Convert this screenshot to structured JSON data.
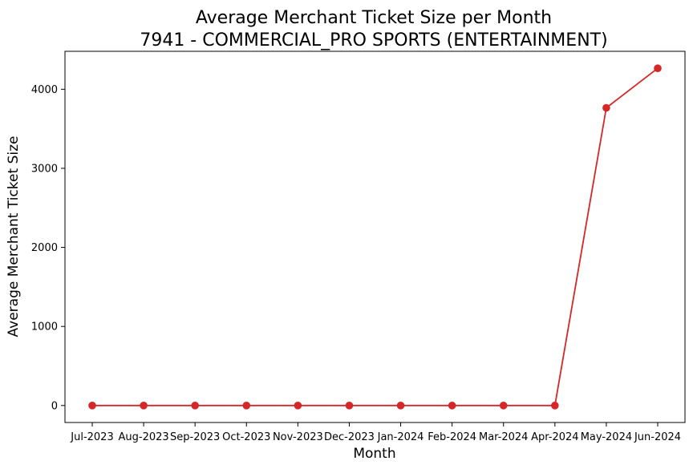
{
  "chart_data": {
    "type": "line",
    "title_line1": "Average Merchant Ticket Size per Month",
    "title_line2": "7941 - COMMERCIAL_PRO SPORTS (ENTERTAINMENT)",
    "xlabel": "Month",
    "ylabel": "Average Merchant Ticket Size",
    "categories": [
      "Jul-2023",
      "Aug-2023",
      "Sep-2023",
      "Oct-2023",
      "Nov-2023",
      "Dec-2023",
      "Jan-2024",
      "Feb-2024",
      "Mar-2024",
      "Apr-2024",
      "May-2024",
      "Jun-2024"
    ],
    "series": [
      {
        "name": "Average Merchant Ticket Size",
        "color": "#d62728",
        "values": [
          0,
          0,
          0,
          0,
          0,
          0,
          0,
          0,
          0,
          0,
          3765,
          4265
        ]
      }
    ],
    "ylim": [
      -215,
      4480
    ],
    "yticks": [
      0,
      1000,
      2000,
      3000,
      4000
    ],
    "grid": false,
    "legend": "none"
  }
}
